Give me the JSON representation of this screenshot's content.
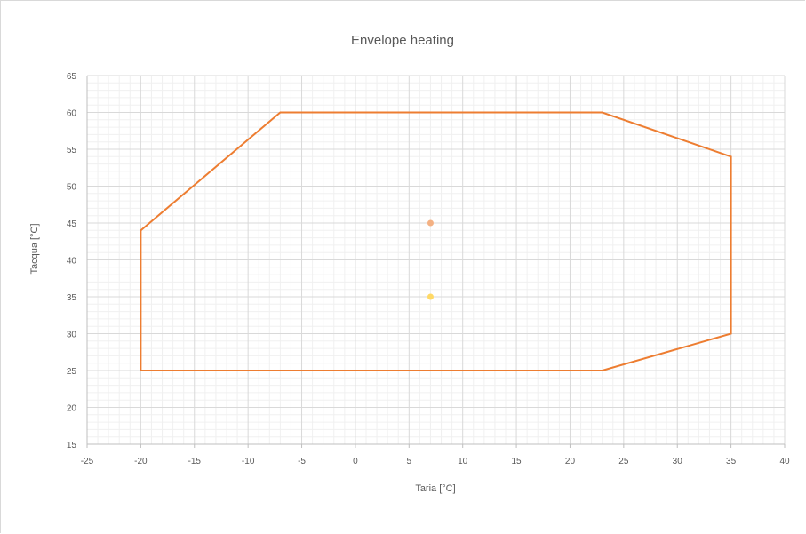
{
  "chart_data": {
    "type": "scatter",
    "title": "Envelope heating",
    "xlabel": "Taria [°C]",
    "ylabel": "Tacqua [°C]",
    "xlim": [
      -25,
      40
    ],
    "ylim": [
      15,
      65
    ],
    "x_major_step": 5,
    "y_major_step": 5,
    "x_minor_step": 1,
    "y_minor_step": 1,
    "grid": true,
    "legend": "none",
    "x_ticks": [
      "-25",
      "-20",
      "-15",
      "-10",
      "-5",
      "0",
      "5",
      "10",
      "15",
      "20",
      "25",
      "30",
      "35",
      "40"
    ],
    "y_ticks": [
      "15",
      "20",
      "25",
      "30",
      "35",
      "40",
      "45",
      "50",
      "55",
      "60",
      "65"
    ],
    "series": [
      {
        "kind": "line",
        "color": "#ED7D31",
        "points": [
          [
            -20,
            25
          ],
          [
            -20,
            44
          ],
          [
            -7,
            60
          ],
          [
            23,
            60
          ],
          [
            35,
            54
          ],
          [
            35,
            30
          ],
          [
            23,
            25
          ],
          [
            -20,
            25
          ]
        ]
      },
      {
        "kind": "point",
        "color": "#F4B183",
        "points": [
          [
            7,
            45
          ]
        ]
      },
      {
        "kind": "point",
        "color": "#FFD966",
        "points": [
          [
            7,
            35
          ]
        ]
      }
    ]
  }
}
